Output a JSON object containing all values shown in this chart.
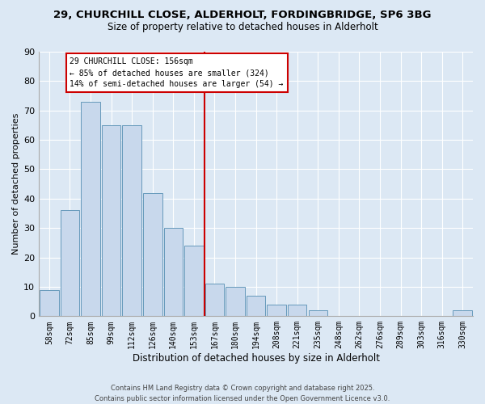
{
  "title": "29, CHURCHILL CLOSE, ALDERHOLT, FORDINGBRIDGE, SP6 3BG",
  "subtitle": "Size of property relative to detached houses in Alderholt",
  "xlabel": "Distribution of detached houses by size in Alderholt",
  "ylabel": "Number of detached properties",
  "bar_labels": [
    "58sqm",
    "72sqm",
    "85sqm",
    "99sqm",
    "112sqm",
    "126sqm",
    "140sqm",
    "153sqm",
    "167sqm",
    "180sqm",
    "194sqm",
    "208sqm",
    "221sqm",
    "235sqm",
    "248sqm",
    "262sqm",
    "276sqm",
    "289sqm",
    "303sqm",
    "316sqm",
    "330sqm"
  ],
  "bar_values": [
    9,
    36,
    73,
    65,
    65,
    42,
    30,
    24,
    11,
    10,
    7,
    4,
    4,
    2,
    0,
    0,
    0,
    0,
    0,
    0,
    2
  ],
  "bar_color": "#c8d8ec",
  "bar_edge_color": "#6699bb",
  "vline_index": 7,
  "vline_color": "#cc0000",
  "annotation_title": "29 CHURCHILL CLOSE: 156sqm",
  "annotation_line1": "← 85% of detached houses are smaller (324)",
  "annotation_line2": "14% of semi-detached houses are larger (54) →",
  "annotation_box_color": "#ffffff",
  "annotation_box_edge": "#cc0000",
  "ylim": [
    0,
    90
  ],
  "yticks": [
    0,
    10,
    20,
    30,
    40,
    50,
    60,
    70,
    80,
    90
  ],
  "bg_color": "#dce8f4",
  "grid_color": "#ffffff",
  "footer1": "Contains HM Land Registry data © Crown copyright and database right 2025.",
  "footer2": "Contains public sector information licensed under the Open Government Licence v3.0."
}
